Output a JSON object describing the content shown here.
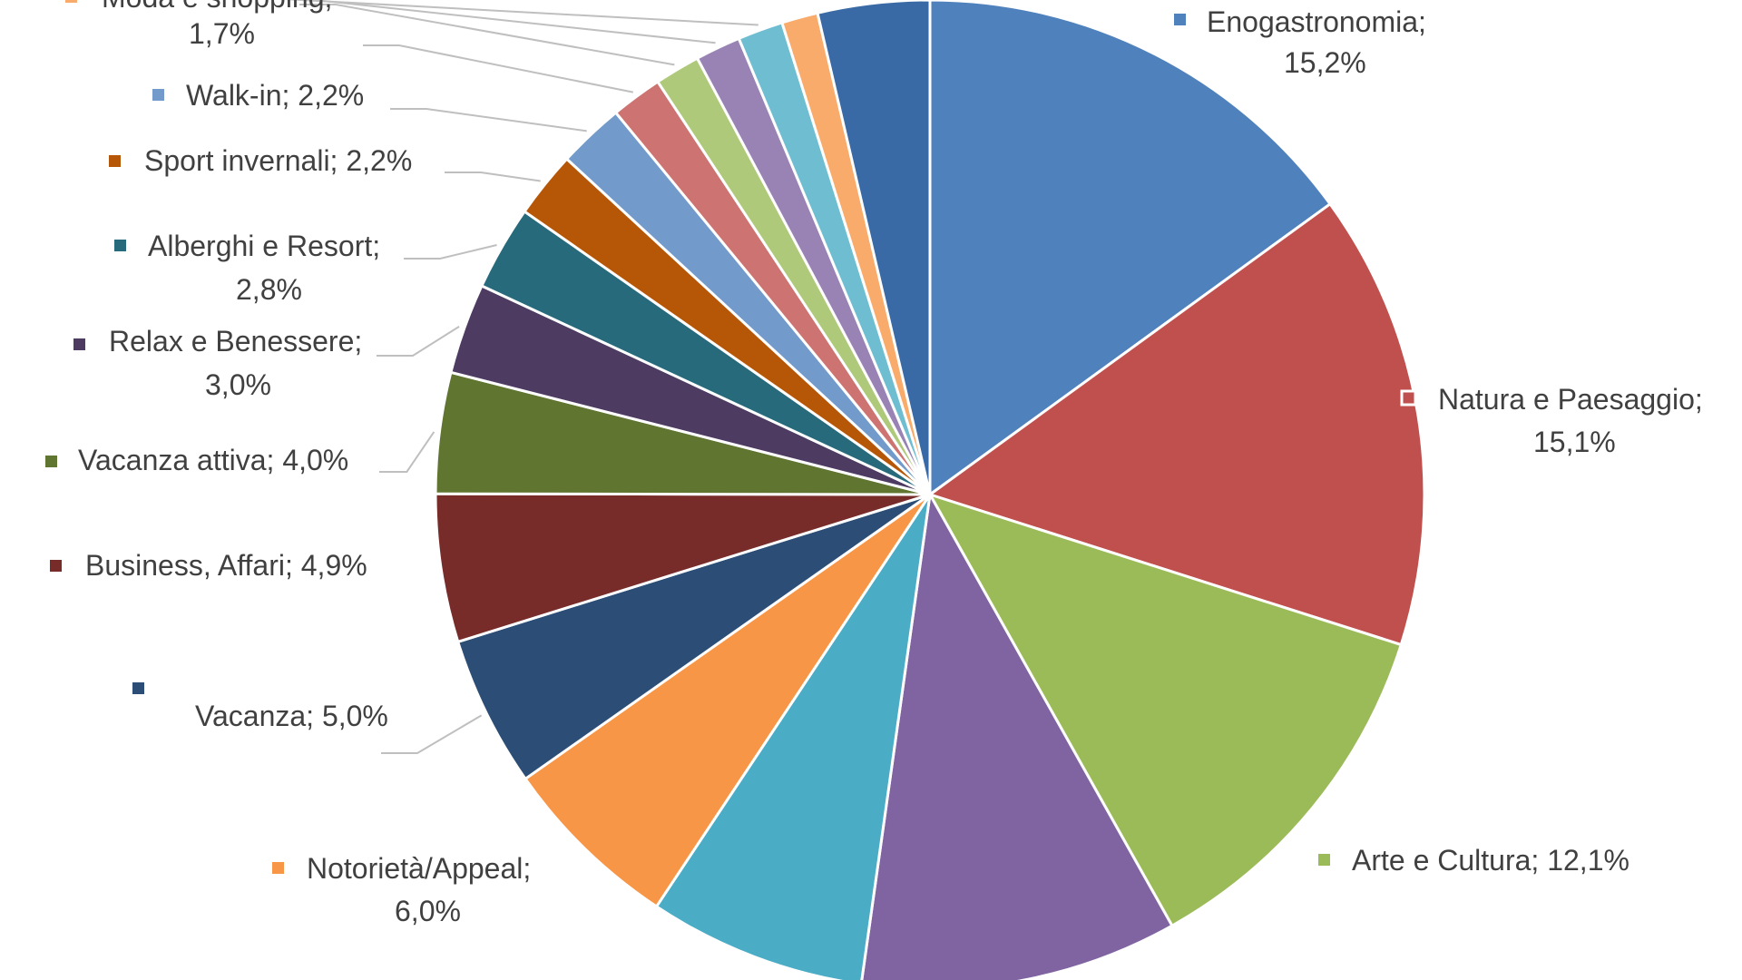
{
  "chart_data": {
    "type": "pie",
    "title": "",
    "legend_placement": "labels-around-pie",
    "slices": [
      {
        "name": "Enogastronomia",
        "display": "15,2%",
        "value": 15.2,
        "color": "#4f81bd"
      },
      {
        "name": "Natura e Paesaggio",
        "display": "15,1%",
        "value": 15.1,
        "color": "#c0504d"
      },
      {
        "name": "Arte e Cultura",
        "display": "12,1%",
        "value": 12.1,
        "color": "#9bbb59"
      },
      {
        "name": "",
        "display": "",
        "value": 10.5,
        "color": "#8064a2"
      },
      {
        "name": "",
        "display": "",
        "value": 7.2,
        "color": "#4bacc6"
      },
      {
        "name": "Notorietà/Appeal",
        "display": "6,0%",
        "value": 6.0,
        "color": "#f79646"
      },
      {
        "name": "Vacanza",
        "display": "5,0%",
        "value": 5.0,
        "color": "#2c4d75"
      },
      {
        "name": "Business, Affari",
        "display": "4,9%",
        "value": 4.9,
        "color": "#772c2a"
      },
      {
        "name": "Vacanza attiva",
        "display": "4,0%",
        "value": 4.0,
        "color": "#5f7530"
      },
      {
        "name": "Relax e Benessere",
        "display": "3,0%",
        "value": 3.0,
        "color": "#4d3b62"
      },
      {
        "name": "Alberghi e Resort",
        "display": "2,8%",
        "value": 2.8,
        "color": "#276a7c"
      },
      {
        "name": "Sport invernali",
        "display": "2,2%",
        "value": 2.2,
        "color": "#b65708"
      },
      {
        "name": "Walk-in",
        "display": "2,2%",
        "value": 2.2,
        "color": "#729aca"
      },
      {
        "name": "",
        "display": "",
        "value": 1.7,
        "color": "#cd7371"
      },
      {
        "name": "",
        "display": "",
        "value": 1.5,
        "color": "#afc97a"
      },
      {
        "name": "",
        "display": "",
        "value": 1.5,
        "color": "#9983b5"
      },
      {
        "name": "",
        "display": "",
        "value": 1.5,
        "color": "#6fbdd1"
      },
      {
        "name": "",
        "display": "",
        "value": 1.2,
        "color": "#f9ab6b"
      },
      {
        "name": "",
        "display": "",
        "value": 3.7,
        "color": "#3a6aa5"
      }
    ],
    "extra_labels": [
      {
        "text": "Moda e shopping;",
        "color": "#f9ab6b"
      },
      {
        "text": "1,7%"
      }
    ]
  }
}
